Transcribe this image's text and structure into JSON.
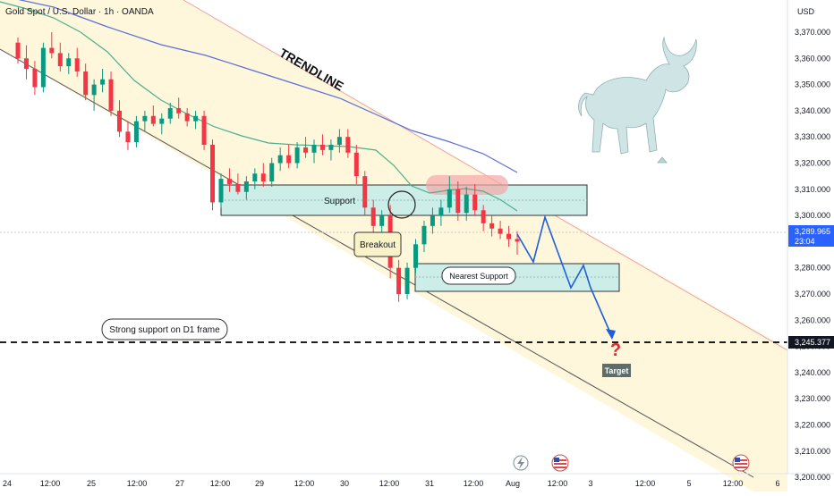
{
  "header": {
    "symbol_title": "Gold Spot / U.S. Dollar · 1h · OANDA",
    "currency": "USD"
  },
  "price_axis": {
    "ticks": [
      "3,370.000",
      "3,360.000",
      "3,350.000",
      "3,340.000",
      "3,330.000",
      "3,320.000",
      "3,310.000",
      "3,300.000",
      "3,280.000",
      "3,270.000",
      "3,260.000",
      "3,250.000",
      "3,240.000",
      "3,230.000",
      "3,220.000",
      "3,210.000",
      "3,200.000"
    ],
    "current_price": "3,289.965",
    "countdown": "23:04",
    "target_price_label": "3,245.377"
  },
  "time_axis": {
    "ticks": [
      "24",
      "12:00",
      "25",
      "12:00",
      "27",
      "12:00",
      "29",
      "12:00",
      "30",
      "12:00",
      "31",
      "12:00",
      "Aug",
      "12:00",
      "3",
      "12:00",
      "5",
      "12:00",
      "6"
    ]
  },
  "annotations": {
    "trendline": "TRENDLINE",
    "support": "Support",
    "breakout": "Breakout",
    "nearest_support": "Nearest Support",
    "strong_support": "Strong support on D1 frame",
    "target": "Target",
    "question_mark": "?"
  },
  "colors": {
    "up_candle": "#089981",
    "down_candle": "#f23645",
    "channel_fill": "#fff7dc",
    "zone_fill": "#cdeee8",
    "ma_blue": "#5b6fd6",
    "ma_green": "#4caf8a",
    "projection": "#1e5fd8",
    "price_label_bg": "#2962ff",
    "target_label_bg": "#131722"
  },
  "chart_data": {
    "type": "candlestick",
    "title": "Gold Spot / U.S. Dollar · 1h · OANDA",
    "y_unit": "USD",
    "ylim": [
      3196,
      3380
    ],
    "grid": false,
    "candles_ohlc": [
      [
        3366,
        3368,
        3358,
        3360
      ],
      [
        3360,
        3365,
        3352,
        3356
      ],
      [
        3356,
        3359,
        3346,
        3349
      ],
      [
        3349,
        3366,
        3347,
        3364
      ],
      [
        3364,
        3370,
        3360,
        3362
      ],
      [
        3362,
        3366,
        3355,
        3357
      ],
      [
        3357,
        3362,
        3354,
        3360
      ],
      [
        3360,
        3364,
        3353,
        3355
      ],
      [
        3355,
        3358,
        3344,
        3346
      ],
      [
        3346,
        3352,
        3340,
        3350
      ],
      [
        3350,
        3356,
        3347,
        3352
      ],
      [
        3352,
        3355,
        3338,
        3340
      ],
      [
        3340,
        3344,
        3330,
        3332
      ],
      [
        3332,
        3336,
        3325,
        3328
      ],
      [
        3328,
        3338,
        3326,
        3336
      ],
      [
        3336,
        3340,
        3332,
        3338
      ],
      [
        3338,
        3342,
        3334,
        3335
      ],
      [
        3335,
        3339,
        3331,
        3337
      ],
      [
        3337,
        3343,
        3335,
        3341
      ],
      [
        3341,
        3345,
        3337,
        3339
      ],
      [
        3339,
        3341,
        3334,
        3336
      ],
      [
        3336,
        3340,
        3333,
        3338
      ],
      [
        3338,
        3340,
        3325,
        3327
      ],
      [
        3327,
        3329,
        3302,
        3305
      ],
      [
        3305,
        3316,
        3303,
        3314
      ],
      [
        3314,
        3318,
        3309,
        3312
      ],
      [
        3312,
        3316,
        3308,
        3309
      ],
      [
        3309,
        3315,
        3306,
        3313
      ],
      [
        3313,
        3318,
        3310,
        3316
      ],
      [
        3316,
        3320,
        3311,
        3313
      ],
      [
        3313,
        3322,
        3311,
        3320
      ],
      [
        3320,
        3326,
        3317,
        3323
      ],
      [
        3323,
        3327,
        3318,
        3320
      ],
      [
        3320,
        3328,
        3318,
        3326
      ],
      [
        3326,
        3330,
        3322,
        3324
      ],
      [
        3324,
        3329,
        3320,
        3327
      ],
      [
        3327,
        3331,
        3323,
        3325
      ],
      [
        3325,
        3329,
        3321,
        3327
      ],
      [
        3327,
        3333,
        3324,
        3330
      ],
      [
        3330,
        3333,
        3322,
        3324
      ],
      [
        3324,
        3327,
        3312,
        3315
      ],
      [
        3315,
        3317,
        3300,
        3303
      ],
      [
        3303,
        3306,
        3292,
        3296
      ],
      [
        3296,
        3302,
        3291,
        3300
      ],
      [
        3300,
        3304,
        3276,
        3280
      ],
      [
        3280,
        3283,
        3267,
        3270
      ],
      [
        3270,
        3282,
        3268,
        3280
      ],
      [
        3280,
        3291,
        3278,
        3289
      ],
      [
        3289,
        3298,
        3286,
        3296
      ],
      [
        3296,
        3303,
        3293,
        3300
      ],
      [
        3300,
        3306,
        3296,
        3303
      ],
      [
        3303,
        3315,
        3301,
        3310
      ],
      [
        3310,
        3313,
        3298,
        3301
      ],
      [
        3301,
        3311,
        3298,
        3308
      ],
      [
        3308,
        3312,
        3300,
        3302
      ],
      [
        3302,
        3304,
        3294,
        3297
      ],
      [
        3297,
        3300,
        3292,
        3295
      ],
      [
        3295,
        3298,
        3291,
        3293
      ],
      [
        3293,
        3296,
        3288,
        3291
      ],
      [
        3291,
        3294,
        3285,
        3290
      ]
    ],
    "horizontal_levels": [
      3245.377
    ],
    "current_price": 3289.965
  }
}
